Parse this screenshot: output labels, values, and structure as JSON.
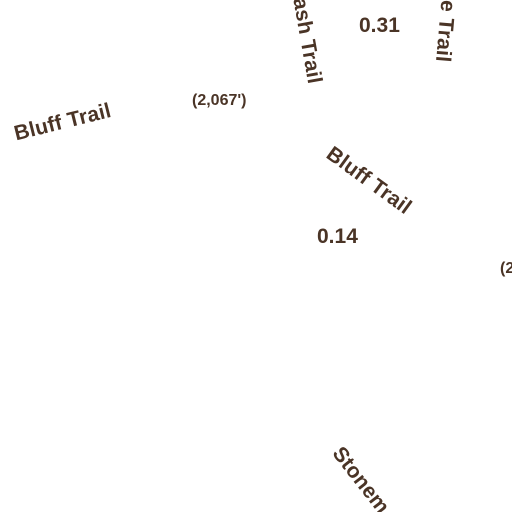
{
  "map": {
    "label_color": "#4a3426",
    "background_color": "#ffffff",
    "trail_labels": {
      "bluff_trail_west": "Bluff Trail",
      "bluff_trail_center": "Bluff Trail",
      "ash_trail_partial": "ash Trail",
      "te_trail_partial": "te Trail",
      "stonem_partial": "Stonem"
    },
    "distance_labels": {
      "top": "0.31",
      "middle": "0.14"
    },
    "elevation_labels": {
      "west": "(2,067')",
      "east_partial": "(2"
    }
  }
}
